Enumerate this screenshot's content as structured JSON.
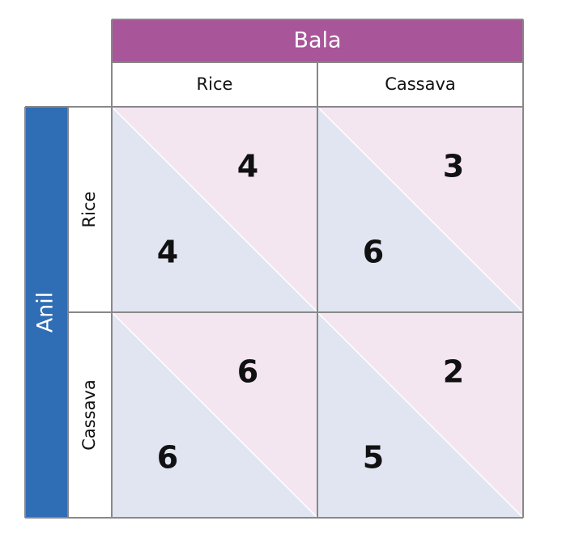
{
  "column_player": "Bala",
  "columns": [
    "Rice",
    "Cassava"
  ],
  "row_player": "Anil",
  "rows": [
    "Rice",
    "Cassava"
  ],
  "cells": [
    [
      {
        "row_payoff": "4",
        "column_payoff": "4"
      },
      {
        "row_payoff": "6",
        "column_payoff": "3"
      }
    ],
    [
      {
        "row_payoff": "6",
        "column_payoff": "6"
      },
      {
        "row_payoff": "5",
        "column_payoff": "2"
      }
    ]
  ]
}
